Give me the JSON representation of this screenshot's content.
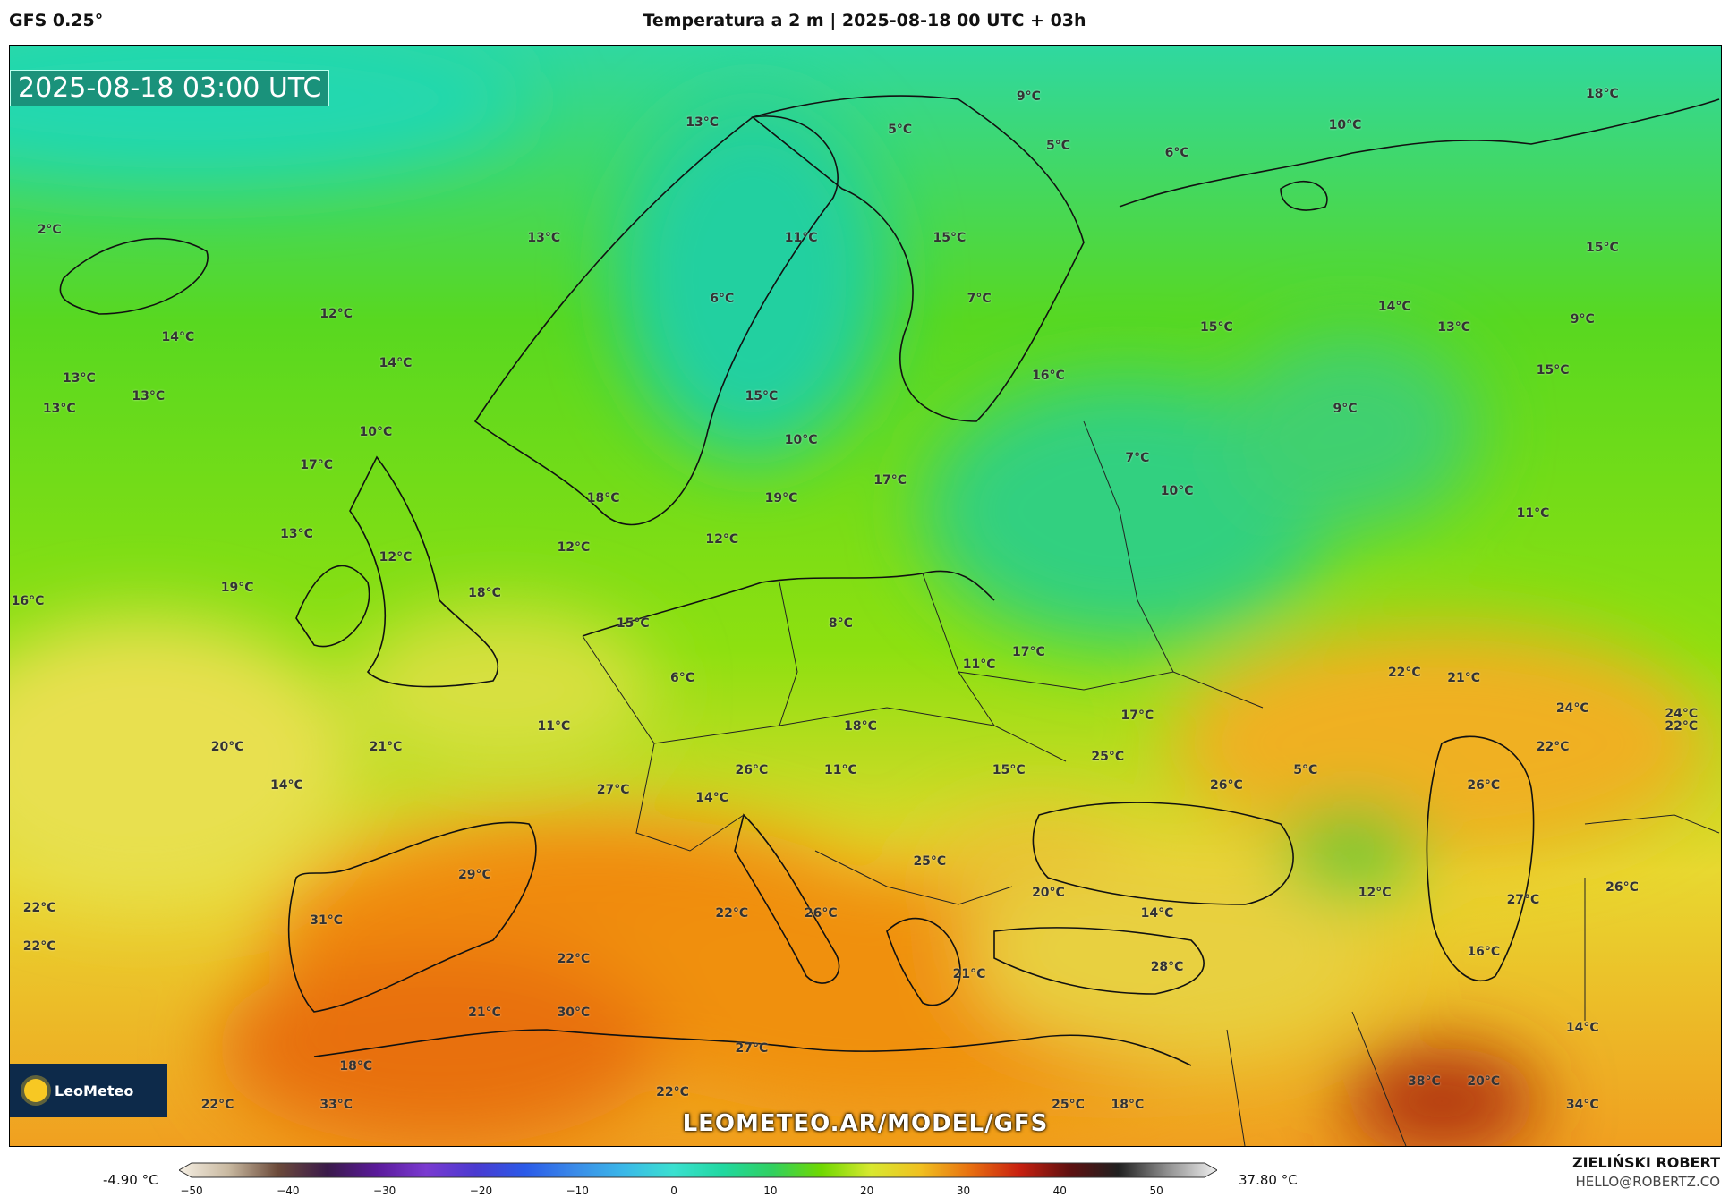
{
  "header": {
    "model": "GFS 0.25°",
    "title": "Temperatura a 2 m | 2025-08-18 00 UTC + 03h"
  },
  "map": {
    "timestamp": "2025-08-18 03:00 UTC",
    "logo_text": "LeoMeteo",
    "watermark": "LEOMETEO.AR/MODEL/GFS",
    "temperature_labels": [
      {
        "text": "9°C",
        "lon": 31,
        "lat": 69.5
      },
      {
        "text": "5°C",
        "lon": 24.5,
        "lat": 68.2
      },
      {
        "text": "5°C",
        "lon": 32.5,
        "lat": 67.6
      },
      {
        "text": "13°C",
        "lon": 14.5,
        "lat": 68.5
      },
      {
        "text": "6°C",
        "lon": 38.5,
        "lat": 67.3
      },
      {
        "text": "10°C",
        "lon": 47,
        "lat": 68.4
      },
      {
        "text": "18°C",
        "lon": 60,
        "lat": 69.6
      },
      {
        "text": "2°C",
        "lon": -18.5,
        "lat": 64.3
      },
      {
        "text": "13°C",
        "lon": 6.5,
        "lat": 64
      },
      {
        "text": "11°C",
        "lon": 19.5,
        "lat": 64
      },
      {
        "text": "15°C",
        "lon": 27,
        "lat": 64
      },
      {
        "text": "15°C",
        "lon": 60,
        "lat": 63.6
      },
      {
        "text": "6°C",
        "lon": 15.5,
        "lat": 61.6
      },
      {
        "text": "7°C",
        "lon": 28.5,
        "lat": 61.6
      },
      {
        "text": "14°C",
        "lon": 49.5,
        "lat": 61.3
      },
      {
        "text": "15°C",
        "lon": 40.5,
        "lat": 60.5
      },
      {
        "text": "13°C",
        "lon": 52.5,
        "lat": 60.5
      },
      {
        "text": "9°C",
        "lon": 59,
        "lat": 60.8
      },
      {
        "text": "12°C",
        "lon": -4,
        "lat": 61
      },
      {
        "text": "14°C",
        "lon": -12,
        "lat": 60.1
      },
      {
        "text": "14°C",
        "lon": -1,
        "lat": 59.1
      },
      {
        "text": "15°C",
        "lon": 57.5,
        "lat": 58.8
      },
      {
        "text": "13°C",
        "lon": -17,
        "lat": 58.5
      },
      {
        "text": "16°C",
        "lon": 32,
        "lat": 58.6
      },
      {
        "text": "13°C",
        "lon": -13.5,
        "lat": 57.8
      },
      {
        "text": "15°C",
        "lon": 17.5,
        "lat": 57.8
      },
      {
        "text": "13°C",
        "lon": -18,
        "lat": 57.3
      },
      {
        "text": "9°C",
        "lon": 47,
        "lat": 57.3
      },
      {
        "text": "10°C",
        "lon": -2,
        "lat": 56.4
      },
      {
        "text": "10°C",
        "lon": 19.5,
        "lat": 56.1
      },
      {
        "text": "7°C",
        "lon": 36.5,
        "lat": 55.4
      },
      {
        "text": "17°C",
        "lon": -5,
        "lat": 55.1
      },
      {
        "text": "17°C",
        "lon": 24,
        "lat": 54.5
      },
      {
        "text": "10°C",
        "lon": 38.5,
        "lat": 54.1
      },
      {
        "text": "18°C",
        "lon": 9.5,
        "lat": 53.8
      },
      {
        "text": "19°C",
        "lon": 18.5,
        "lat": 53.8
      },
      {
        "text": "11°C",
        "lon": 56.5,
        "lat": 53.2
      },
      {
        "text": "13°C",
        "lon": -6,
        "lat": 52.4
      },
      {
        "text": "12°C",
        "lon": 8,
        "lat": 51.9
      },
      {
        "text": "12°C",
        "lon": 15.5,
        "lat": 52.2
      },
      {
        "text": "12°C",
        "lon": -1,
        "lat": 51.5
      },
      {
        "text": "16°C",
        "lon": -20,
        "lat": 49.8
      },
      {
        "text": "19°C",
        "lon": -9,
        "lat": 50.3
      },
      {
        "text": "18°C",
        "lon": 3.5,
        "lat": 50.1
      },
      {
        "text": "15°C",
        "lon": 11,
        "lat": 48.9
      },
      {
        "text": "8°C",
        "lon": 21.5,
        "lat": 48.9
      },
      {
        "text": "17°C",
        "lon": 31,
        "lat": 47.8
      },
      {
        "text": "11°C",
        "lon": 28.5,
        "lat": 47.3
      },
      {
        "text": "6°C",
        "lon": 13.5,
        "lat": 46.8
      },
      {
        "text": "22°C",
        "lon": 50,
        "lat": 47
      },
      {
        "text": "21°C",
        "lon": 53,
        "lat": 46.8
      },
      {
        "text": "24°C",
        "lon": 58.5,
        "lat": 45.6
      },
      {
        "text": "24°C",
        "lon": 64,
        "lat": 45.4
      },
      {
        "text": "22°C",
        "lon": 64,
        "lat": 44.9
      },
      {
        "text": "11°C",
        "lon": 7,
        "lat": 44.9
      },
      {
        "text": "18°C",
        "lon": 22.5,
        "lat": 44.9
      },
      {
        "text": "17°C",
        "lon": 36.5,
        "lat": 45.3
      },
      {
        "text": "20°C",
        "lon": -9.5,
        "lat": 44.1
      },
      {
        "text": "21°C",
        "lon": -1.5,
        "lat": 44.1
      },
      {
        "text": "22°C",
        "lon": 57.5,
        "lat": 44.1
      },
      {
        "text": "25°C",
        "lon": 35,
        "lat": 43.7
      },
      {
        "text": "26°C",
        "lon": 17,
        "lat": 43.2
      },
      {
        "text": "11°C",
        "lon": 21.5,
        "lat": 43.2
      },
      {
        "text": "15°C",
        "lon": 30,
        "lat": 43.2
      },
      {
        "text": "5°C",
        "lon": 45,
        "lat": 43.2
      },
      {
        "text": "14°C",
        "lon": -6.5,
        "lat": 42.6
      },
      {
        "text": "27°C",
        "lon": 10,
        "lat": 42.4
      },
      {
        "text": "26°C",
        "lon": 41,
        "lat": 42.6
      },
      {
        "text": "26°C",
        "lon": 54,
        "lat": 42.6
      },
      {
        "text": "14°C",
        "lon": 15,
        "lat": 42.1
      },
      {
        "text": "25°C",
        "lon": 26,
        "lat": 39.6
      },
      {
        "text": "29°C",
        "lon": 3,
        "lat": 39.1
      },
      {
        "text": "26°C",
        "lon": 61,
        "lat": 38.6
      },
      {
        "text": "20°C",
        "lon": 32,
        "lat": 38.4
      },
      {
        "text": "12°C",
        "lon": 48.5,
        "lat": 38.4
      },
      {
        "text": "27°C",
        "lon": 56,
        "lat": 38.1
      },
      {
        "text": "22°C",
        "lon": -19,
        "lat": 37.8
      },
      {
        "text": "22°C",
        "lon": 16,
        "lat": 37.6
      },
      {
        "text": "26°C",
        "lon": 20.5,
        "lat": 37.6
      },
      {
        "text": "14°C",
        "lon": 37.5,
        "lat": 37.6
      },
      {
        "text": "31°C",
        "lon": -4.5,
        "lat": 37.3
      },
      {
        "text": "22°C",
        "lon": -19,
        "lat": 36.3
      },
      {
        "text": "16°C",
        "lon": 54,
        "lat": 36.1
      },
      {
        "text": "22°C",
        "lon": 8,
        "lat": 35.8
      },
      {
        "text": "28°C",
        "lon": 38,
        "lat": 35.5
      },
      {
        "text": "21°C",
        "lon": 28,
        "lat": 35.2
      },
      {
        "text": "21°C",
        "lon": 3.5,
        "lat": 33.7
      },
      {
        "text": "30°C",
        "lon": 8,
        "lat": 33.7
      },
      {
        "text": "14°C",
        "lon": 59,
        "lat": 33.1
      },
      {
        "text": "27°C",
        "lon": 17,
        "lat": 32.3
      },
      {
        "text": "18°C",
        "lon": -3,
        "lat": 31.6
      },
      {
        "text": "38°C",
        "lon": 51,
        "lat": 31
      },
      {
        "text": "20°C",
        "lon": 54,
        "lat": 31
      },
      {
        "text": "22°C",
        "lon": -10,
        "lat": 30.1
      },
      {
        "text": "33°C",
        "lon": -4,
        "lat": 30.1
      },
      {
        "text": "22°C",
        "lon": 13,
        "lat": 30.6
      },
      {
        "text": "25°C",
        "lon": 33,
        "lat": 30.1
      },
      {
        "text": "18°C",
        "lon": 36,
        "lat": 30.1
      },
      {
        "text": "34°C",
        "lon": 59,
        "lat": 30.1
      }
    ]
  },
  "colorbar": {
    "min_label": "-4.90 °C",
    "max_label": "37.80 °C",
    "ticks": [
      "−50",
      "−40",
      "−30",
      "−20",
      "−10",
      "0",
      "10",
      "20",
      "30",
      "40",
      "50"
    ],
    "range": [
      -50,
      55
    ],
    "stops": [
      {
        "v": -50,
        "c": "#f6f0e4"
      },
      {
        "v": -45,
        "c": "#c8b8a0"
      },
      {
        "v": -40,
        "c": "#6b4a3a"
      },
      {
        "v": -35,
        "c": "#3a1a4a"
      },
      {
        "v": -30,
        "c": "#5a1a9a"
      },
      {
        "v": -25,
        "c": "#7a3ad0"
      },
      {
        "v": -20,
        "c": "#4a3ad0"
      },
      {
        "v": -15,
        "c": "#2a5ae8"
      },
      {
        "v": -10,
        "c": "#3a8ae8"
      },
      {
        "v": -5,
        "c": "#3ab8e8"
      },
      {
        "v": 0,
        "c": "#3ae0d0"
      },
      {
        "v": 5,
        "c": "#20d8a0"
      },
      {
        "v": 10,
        "c": "#30d060"
      },
      {
        "v": 15,
        "c": "#70d800"
      },
      {
        "v": 20,
        "c": "#d8e830"
      },
      {
        "v": 25,
        "c": "#f0c020"
      },
      {
        "v": 30,
        "c": "#e87010"
      },
      {
        "v": 35,
        "c": "#c82010"
      },
      {
        "v": 40,
        "c": "#601010"
      },
      {
        "v": 45,
        "c": "#202020"
      },
      {
        "v": 50,
        "c": "#909090"
      },
      {
        "v": 55,
        "c": "#f0f0f0"
      }
    ]
  },
  "footer": {
    "author": "ZIELIŃSKI ROBERT",
    "email": "HELLO@ROBERTZ.CO"
  }
}
